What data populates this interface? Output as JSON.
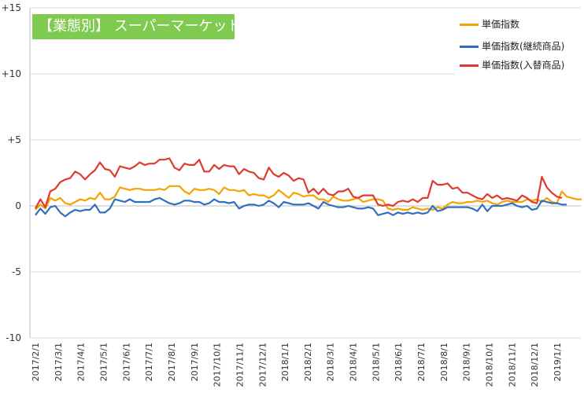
{
  "chart_data": {
    "type": "line",
    "title": "【業態別】 スーパーマーケット",
    "xlabel": "",
    "ylabel": "",
    "ylim": [
      -10,
      15
    ],
    "yticks": [
      15,
      10,
      5,
      0,
      -5,
      -10
    ],
    "ytick_labels": [
      "+15",
      "+10",
      "+5",
      "0",
      "-5",
      "-10"
    ],
    "grid": "horizontal",
    "legend_position": "top-right",
    "xtick_labels": [
      "2017/2/1",
      "2017/3/1",
      "2017/4/1",
      "2017/5/1",
      "2017/6/1",
      "2017/7/1",
      "2017/8/1",
      "2017/9/1",
      "2017/10/1",
      "2017/11/1",
      "2017/12/1",
      "2018/1/1",
      "2018/2/1",
      "2018/3/1",
      "2018/4/1",
      "2018/5/1",
      "2018/6/1",
      "2018/7/1",
      "2018/8/1",
      "2018/9/1",
      "2018/10/1",
      "2018/11/1",
      "2018/12/1",
      "2019/1/1"
    ],
    "series": [
      {
        "name": "単価指数",
        "color": "#f5a300",
        "values": [
          -0.3,
          0.1,
          -0.2,
          0.6,
          0.4,
          0.6,
          0.2,
          0.1,
          0.3,
          0.5,
          0.4,
          0.6,
          0.5,
          1.0,
          0.5,
          0.5,
          0.7,
          1.4,
          1.3,
          1.2,
          1.3,
          1.3,
          1.2,
          1.2,
          1.2,
          1.3,
          1.2,
          1.5,
          1.5,
          1.5,
          1.1,
          0.9,
          1.3,
          1.2,
          1.2,
          1.3,
          1.2,
          0.9,
          1.4,
          1.2,
          1.2,
          1.1,
          1.2,
          0.8,
          0.9,
          0.8,
          0.8,
          0.6,
          0.8,
          1.2,
          0.9,
          0.6,
          1.0,
          0.9,
          0.7,
          0.8,
          0.8,
          0.5,
          0.5,
          0.3,
          0.7,
          0.5,
          0.4,
          0.4,
          0.5,
          0.6,
          0.3,
          0.4,
          0.5,
          0.5,
          0.4,
          -0.2,
          -0.3,
          -0.2,
          -0.3,
          -0.3,
          -0.1,
          -0.2,
          -0.3,
          -0.2,
          -0.3,
          -0.1,
          -0.2,
          0.1,
          0.3,
          0.2,
          0.2,
          0.3,
          0.3,
          0.4,
          0.3,
          0.4,
          0.2,
          0.1,
          0.3,
          0.4,
          0.3,
          0.3,
          0.3,
          0.5,
          0.4,
          0.5,
          0.3,
          0.6,
          0.3,
          0.2,
          1.1,
          0.7,
          0.6,
          0.5,
          0.5
        ]
      },
      {
        "name": "単価指数(継続商品)",
        "color": "#2f6fc0",
        "values": [
          -0.7,
          -0.2,
          -0.6,
          -0.1,
          0.0,
          -0.5,
          -0.8,
          -0.5,
          -0.3,
          -0.4,
          -0.3,
          -0.3,
          0.1,
          -0.5,
          -0.5,
          -0.2,
          0.5,
          0.4,
          0.3,
          0.5,
          0.3,
          0.3,
          0.3,
          0.3,
          0.5,
          0.6,
          0.4,
          0.2,
          0.1,
          0.2,
          0.4,
          0.4,
          0.3,
          0.3,
          0.1,
          0.2,
          0.5,
          0.3,
          0.3,
          0.2,
          0.3,
          -0.2,
          0.0,
          0.1,
          0.1,
          0.0,
          0.1,
          0.4,
          0.2,
          -0.1,
          0.3,
          0.2,
          0.1,
          0.1,
          0.1,
          0.2,
          0.0,
          -0.2,
          0.3,
          0.1,
          0.0,
          -0.1,
          -0.1,
          0.0,
          -0.1,
          -0.2,
          -0.2,
          -0.1,
          -0.2,
          -0.7,
          -0.6,
          -0.5,
          -0.7,
          -0.5,
          -0.6,
          -0.5,
          -0.6,
          -0.5,
          -0.6,
          -0.5,
          0.0,
          -0.4,
          -0.3,
          -0.1,
          -0.1,
          -0.1,
          -0.1,
          -0.1,
          -0.2,
          -0.4,
          0.1,
          -0.4,
          0.0,
          0.0,
          0.0,
          0.1,
          0.2,
          0.0,
          -0.1,
          0.0,
          -0.3,
          -0.2,
          0.4,
          0.3,
          0.2,
          0.2,
          0.1,
          0.1
        ]
      },
      {
        "name": "単価指数(入替商品)",
        "color": "#e03a2e",
        "values": [
          -0.2,
          0.5,
          -0.1,
          1.1,
          1.3,
          1.8,
          2.0,
          2.1,
          2.6,
          2.4,
          2.0,
          2.4,
          2.7,
          3.3,
          2.8,
          2.7,
          2.2,
          3.0,
          2.9,
          2.8,
          3.0,
          3.3,
          3.1,
          3.2,
          3.2,
          3.5,
          3.5,
          3.6,
          2.9,
          2.7,
          3.2,
          3.1,
          3.1,
          3.5,
          2.6,
          2.6,
          3.1,
          2.8,
          3.1,
          3.0,
          3.0,
          2.4,
          2.8,
          2.6,
          2.5,
          2.1,
          2.0,
          2.9,
          2.4,
          2.2,
          2.5,
          2.3,
          1.9,
          2.1,
          2.0,
          1.0,
          1.3,
          0.9,
          1.3,
          0.9,
          0.8,
          1.1,
          1.1,
          1.3,
          0.7,
          0.6,
          0.8,
          0.8,
          0.8,
          0.1,
          0.0,
          0.1,
          0.0,
          0.3,
          0.4,
          0.3,
          0.5,
          0.3,
          0.6,
          0.6,
          1.9,
          1.6,
          1.6,
          1.7,
          1.3,
          1.4,
          1.0,
          1.0,
          0.8,
          0.6,
          0.5,
          0.9,
          0.6,
          0.8,
          0.5,
          0.6,
          0.5,
          0.4,
          0.8,
          0.6,
          0.3,
          0.2,
          2.2,
          1.4,
          1.0,
          0.7,
          0.6
        ]
      }
    ]
  }
}
